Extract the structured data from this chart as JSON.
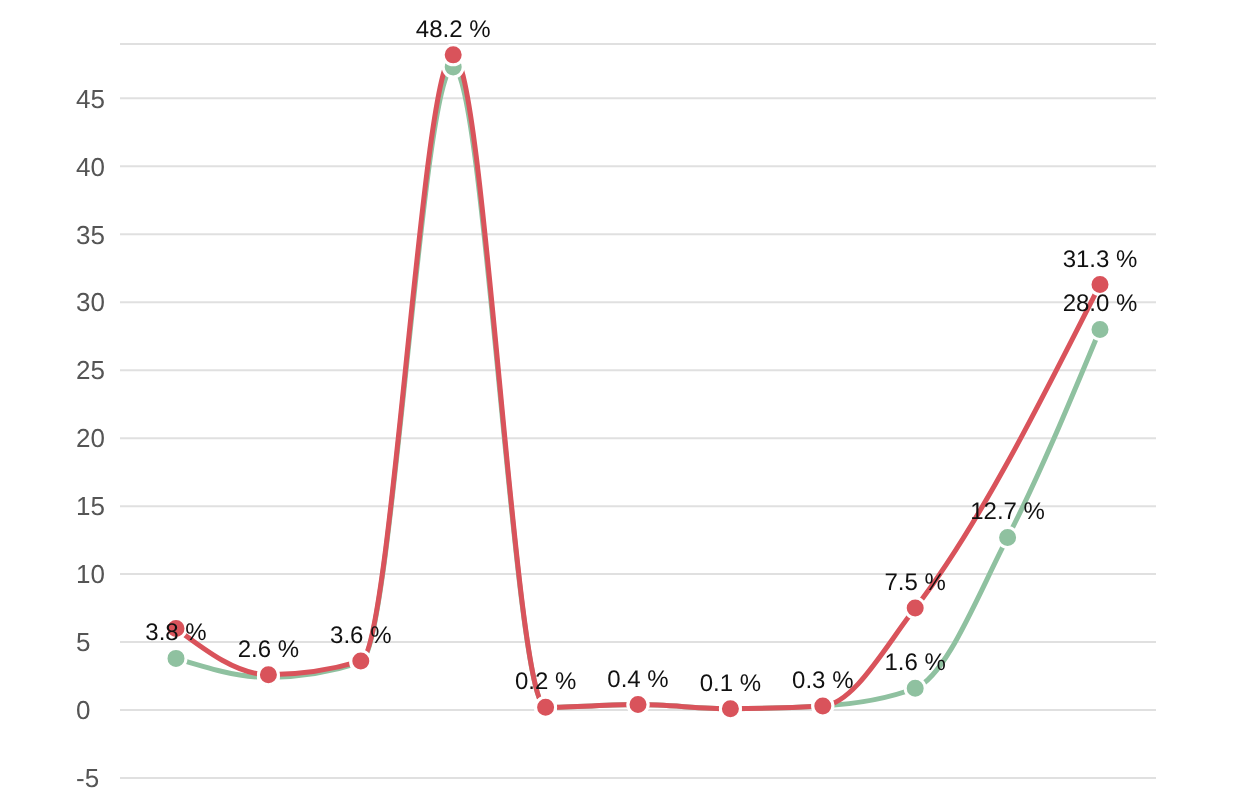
{
  "chart_data": {
    "type": "line",
    "categories": [
      null,
      null,
      null,
      null,
      null,
      null,
      null,
      null,
      null,
      null,
      null
    ],
    "series": [
      {
        "color": "#8fc1a0",
        "values": [
          3.8,
          2.4,
          3.5,
          47.3,
          0.2,
          0.4,
          0.1,
          0.3,
          1.6,
          12.7,
          28.0
        ],
        "value_labels": [
          "3.8 %",
          null,
          null,
          null,
          null,
          null,
          null,
          null,
          "1.6 %",
          "12.7 %",
          "28.0 %"
        ]
      },
      {
        "color": "#d9535b",
        "values": [
          6.0,
          2.6,
          3.6,
          48.2,
          0.2,
          0.4,
          0.1,
          0.3,
          7.5,
          null,
          31.3
        ],
        "value_labels": [
          null,
          "2.6 %",
          "3.6 %",
          "48.2 %",
          "0.2 %",
          "0.4 %",
          "0.1 %",
          "0.3 %",
          "7.5 %",
          null,
          "31.3 %"
        ]
      }
    ],
    "ylim": [
      -5,
      49
    ],
    "yticks": [
      -5,
      0,
      5,
      10,
      15,
      20,
      25,
      30,
      35,
      40,
      45
    ],
    "grid": "y",
    "tick_labels": "y",
    "marker": "circle"
  }
}
